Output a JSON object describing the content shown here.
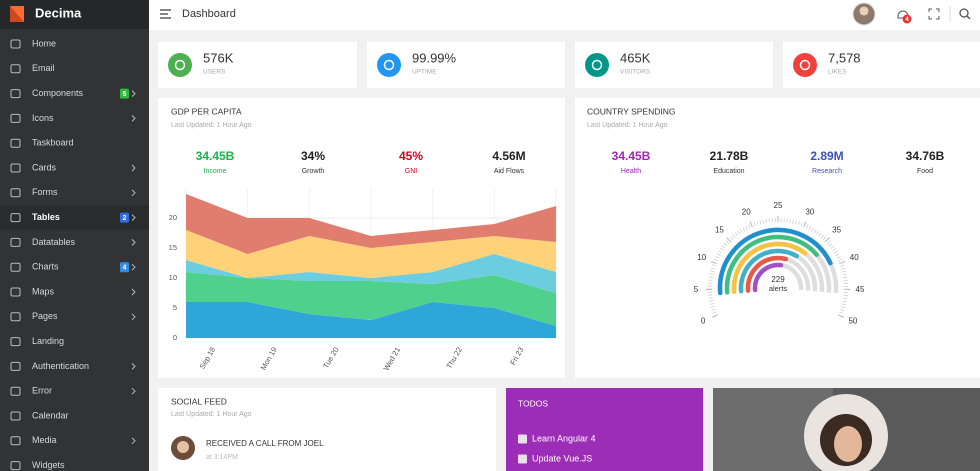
{
  "brand": "Decima",
  "sidebar": {
    "items": [
      {
        "label": "Home"
      },
      {
        "label": "Email"
      },
      {
        "label": "Components",
        "badge": "5",
        "badge_color": "#2eb840",
        "arrow": true
      },
      {
        "label": "Icons",
        "arrow": true
      },
      {
        "label": "Taskboard"
      },
      {
        "label": "Cards",
        "arrow": true
      },
      {
        "label": "Forms",
        "arrow": true
      },
      {
        "label": "Tables",
        "badge": "2",
        "badge_color": "#2f6de1",
        "arrow": true,
        "active": true
      },
      {
        "label": "Datatables",
        "arrow": true
      },
      {
        "label": "Charts",
        "badge": "4",
        "badge_color": "#2f8de1",
        "arrow": true
      },
      {
        "label": "Maps",
        "arrow": true
      },
      {
        "label": "Pages",
        "arrow": true
      },
      {
        "label": "Landing"
      },
      {
        "label": "Authentication",
        "arrow": true
      },
      {
        "label": "Error",
        "arrow": true
      },
      {
        "label": "Calendar"
      },
      {
        "label": "Media",
        "arrow": true
      },
      {
        "label": "Widgets"
      }
    ]
  },
  "topbar": {
    "title": "Dashboard",
    "notifications": "4"
  },
  "stats": [
    {
      "value": "576K",
      "label": "USERS",
      "color": "#4caf50"
    },
    {
      "value": "99.99%",
      "label": "UPTIME",
      "color": "#2196f3"
    },
    {
      "value": "465K",
      "label": "VISITORS",
      "color": "#00968a"
    },
    {
      "value": "7,578",
      "label": "LIKES",
      "color": "#f2413a"
    }
  ],
  "gdp": {
    "title": "GDP PER CAPITA",
    "updated": "Last Updated: 1 Hour Ago",
    "metrics": [
      {
        "value": "34.45B",
        "label": "Income",
        "color": "#1db24a"
      },
      {
        "value": "34%",
        "label": "Growth",
        "color": "#222222"
      },
      {
        "value": "45%",
        "label": "GNI",
        "color": "#d0021b"
      },
      {
        "value": "4.56M",
        "label": "Aid Flows",
        "color": "#222222"
      }
    ]
  },
  "country": {
    "title": "COUNTRY SPENDING",
    "updated": "Last Updated: 1 Hour Ago",
    "metrics": [
      {
        "value": "34.45B",
        "label": "Health",
        "color": "#9c27b0"
      },
      {
        "value": "21.78B",
        "label": "Education",
        "color": "#222222"
      },
      {
        "value": "2.89M",
        "label": "Research",
        "color": "#3f51b5"
      },
      {
        "value": "34.76B",
        "label": "Food",
        "color": "#222222"
      }
    ]
  },
  "chart_data": [
    {
      "type": "area",
      "stacked": true,
      "categories": [
        "Sep 18",
        "Mon 19",
        "Tue 20",
        "Wed 21",
        "Thu 22",
        "Fri 23",
        null
      ],
      "series": [
        {
          "color": "#2fa6d8",
          "values": [
            6,
            6,
            4,
            3,
            6,
            5,
            2
          ]
        },
        {
          "color": "#4fd08c",
          "values": [
            5,
            4,
            5.5,
            6.5,
            3,
            5.5,
            5.5
          ]
        },
        {
          "color": "#6ccce0",
          "values": [
            2,
            0,
            1.5,
            0.5,
            2,
            3.5,
            3.5
          ]
        },
        {
          "color": "#ffd27a",
          "values": [
            5,
            4,
            6,
            5,
            5,
            3,
            5
          ]
        },
        {
          "color": "#e07d6e",
          "values": [
            6,
            6,
            3,
            2,
            2,
            2,
            6
          ]
        }
      ],
      "ylim": [
        0,
        25
      ],
      "yticks": [
        0,
        5,
        10,
        15,
        20
      ],
      "grid": true
    },
    {
      "type": "gauge",
      "center_value": "229",
      "center_label": "alerts",
      "xlim": [
        0,
        50
      ],
      "xticks": [
        0,
        5,
        10,
        15,
        20,
        25,
        30,
        35,
        40,
        45,
        50
      ],
      "values": [
        42,
        38,
        35,
        33,
        29,
        27
      ],
      "colors": [
        "#1f8fcf",
        "#3fbf7f",
        "#f5c242",
        "#3fb0c8",
        "#e5584a",
        "#a050c8"
      ]
    }
  ],
  "social": {
    "title": "SOCIAL FEED",
    "updated": "Last Updated: 1 Hour Ago",
    "items": [
      {
        "text": "RECEIVED A CALL FROM JOEL",
        "time": "at 3:14PM"
      }
    ]
  },
  "todos": {
    "title": "TODOS",
    "items": [
      "Learn Angular 4",
      "Update Vue.JS"
    ]
  }
}
